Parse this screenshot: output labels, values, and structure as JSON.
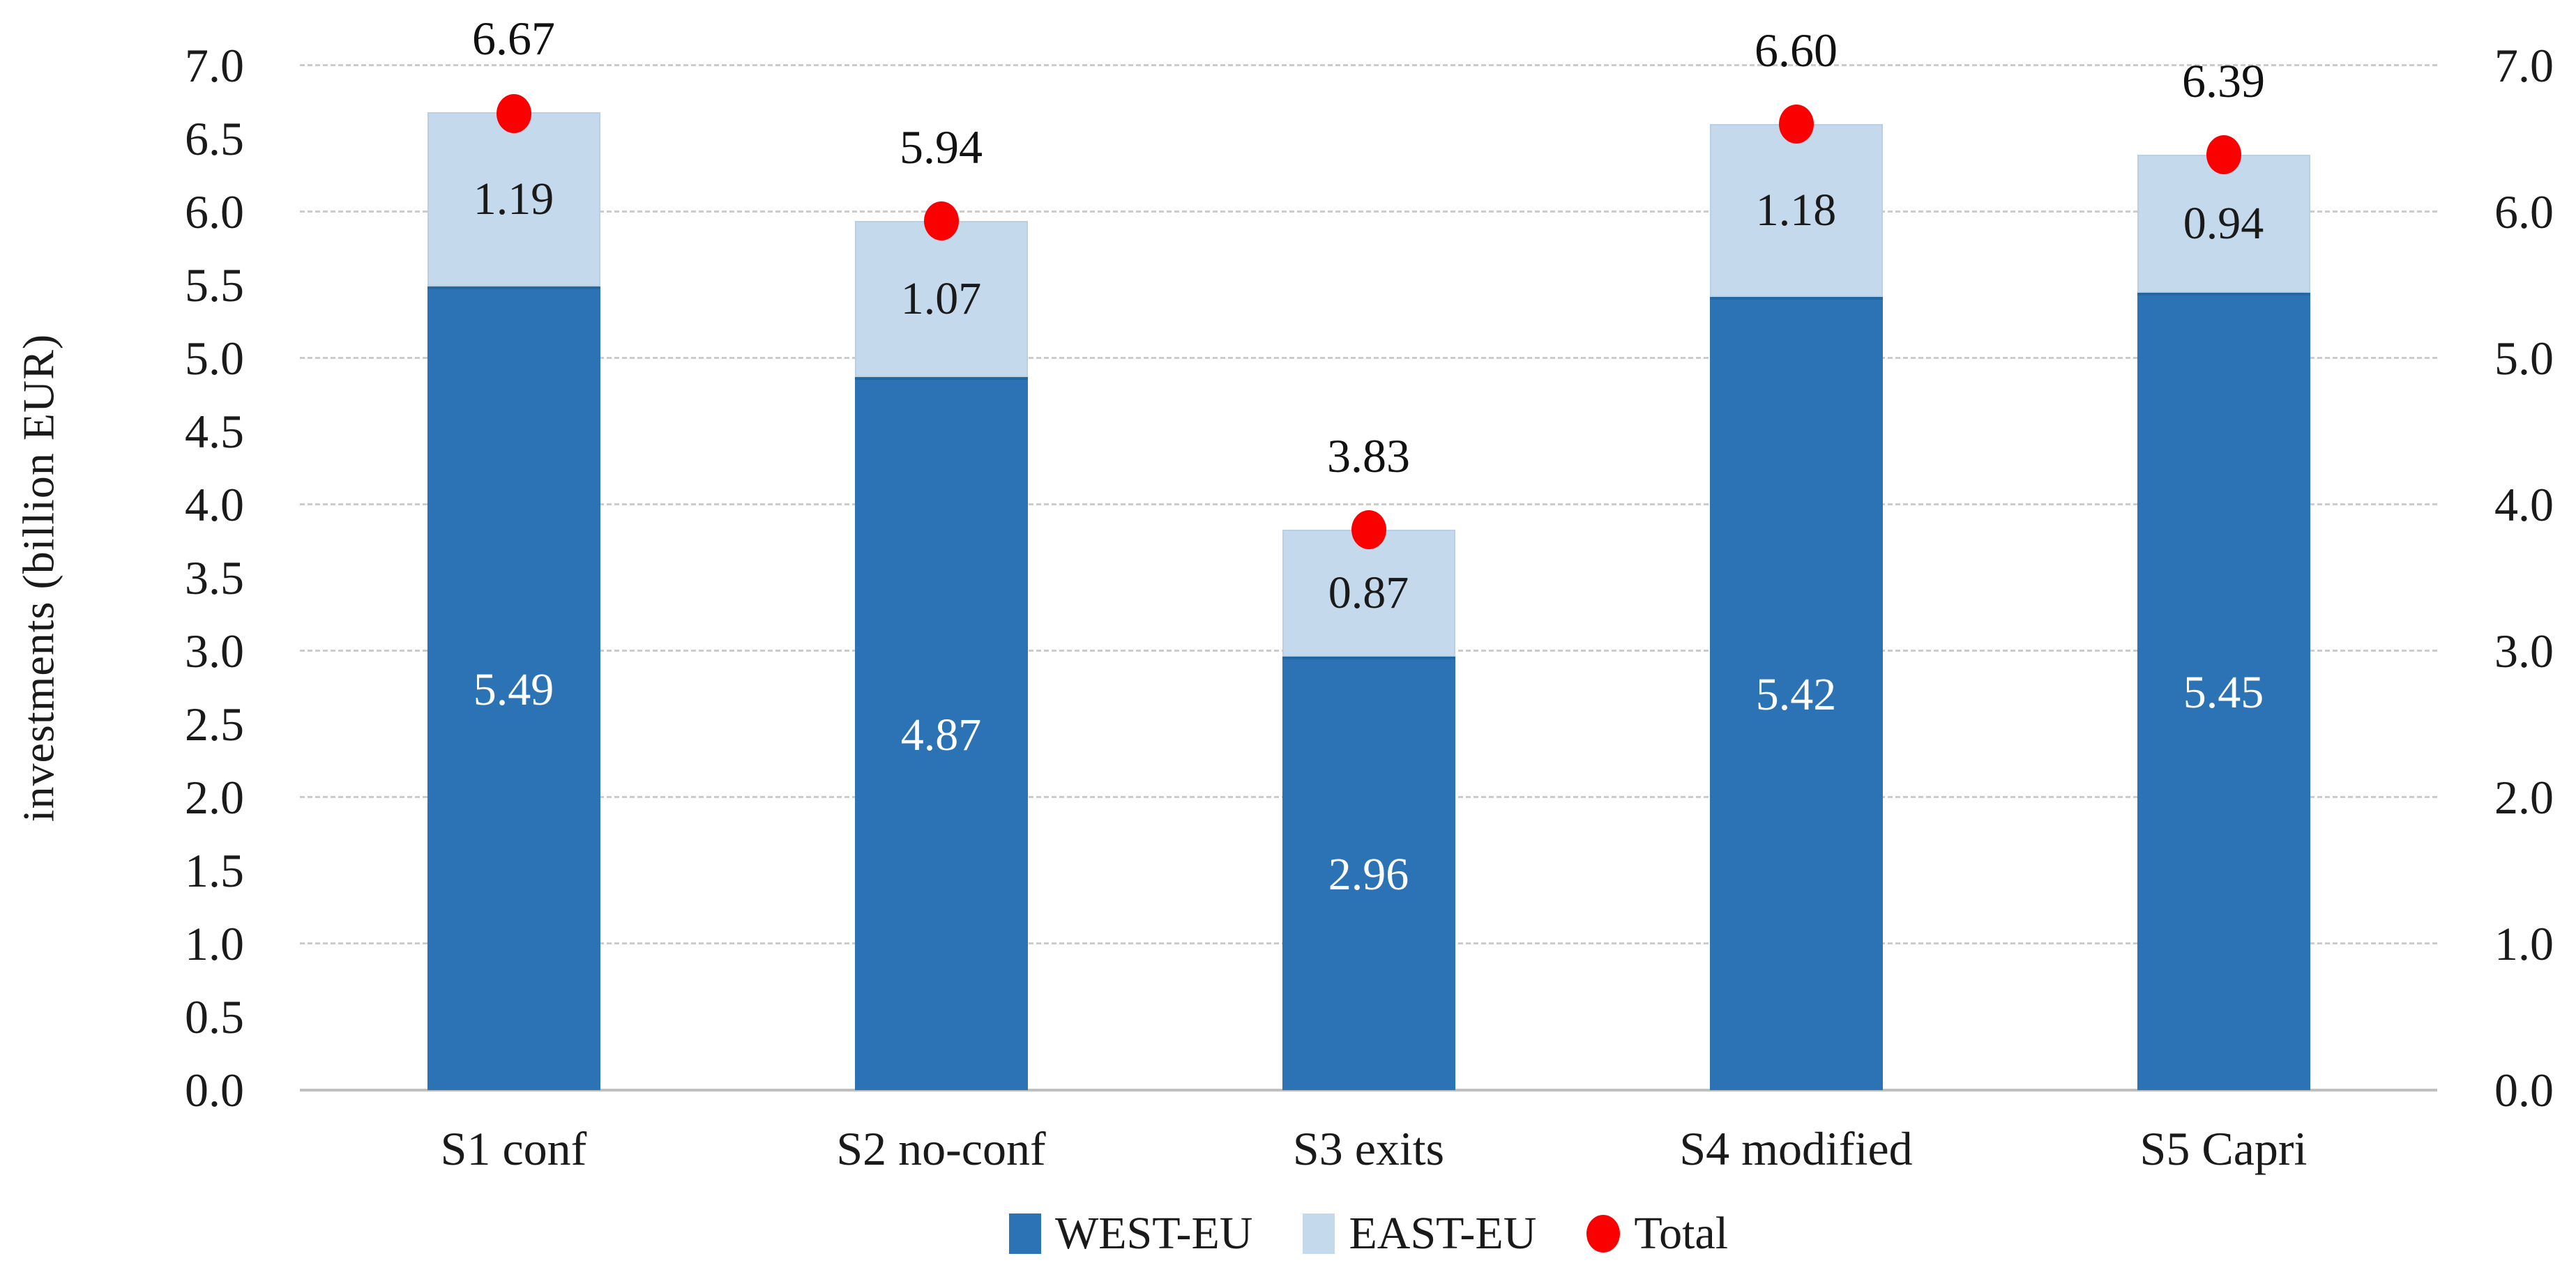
{
  "chart_data": {
    "type": "bar",
    "stacked": true,
    "title": "",
    "xlabel": "",
    "ylabel": "investments (billion EUR)",
    "categories": [
      "S1 conf",
      "S2 no-conf",
      "S3 exits",
      "S4 modified",
      "S5 Capri"
    ],
    "series": [
      {
        "name": "WEST-EU",
        "color": "#2c73b5",
        "label_color": "#ffffff",
        "values": [
          5.49,
          4.87,
          2.96,
          5.42,
          5.45
        ],
        "labels": [
          "5.49",
          "4.87",
          "2.96",
          "5.42",
          "5.45"
        ]
      },
      {
        "name": "EAST-EU",
        "color": "#c5d9ec",
        "label_color": "#1a1a1a",
        "values": [
          1.19,
          1.07,
          0.87,
          1.18,
          0.94
        ],
        "labels": [
          "1.19",
          "1.07",
          "0.87",
          "1.18",
          "0.94"
        ]
      }
    ],
    "total_series": {
      "name": "Total",
      "marker": "circle",
      "marker_color": "#fb0000",
      "values": [
        6.67,
        5.94,
        3.83,
        6.6,
        6.39
      ],
      "labels": [
        "6.67",
        "5.94",
        "3.83",
        "6.60",
        "6.39"
      ]
    },
    "axis_left": {
      "min": 0.0,
      "max": 7.0,
      "step": 0.5,
      "tick_format": "one-decimal"
    },
    "axis_right": {
      "min": 0.0,
      "max": 7.0,
      "step": 1.0,
      "tick_format": "one-decimal"
    },
    "gridline_values": [
      1,
      2,
      3,
      4,
      5,
      6,
      7
    ],
    "grid_on": true,
    "legend_position": "bottom",
    "legend": [
      "WEST-EU",
      "EAST-EU",
      "Total"
    ],
    "colors": {
      "grid": "#cccccc",
      "axis_line": "#c0c0c0",
      "text": "#1a1a1a"
    }
  }
}
